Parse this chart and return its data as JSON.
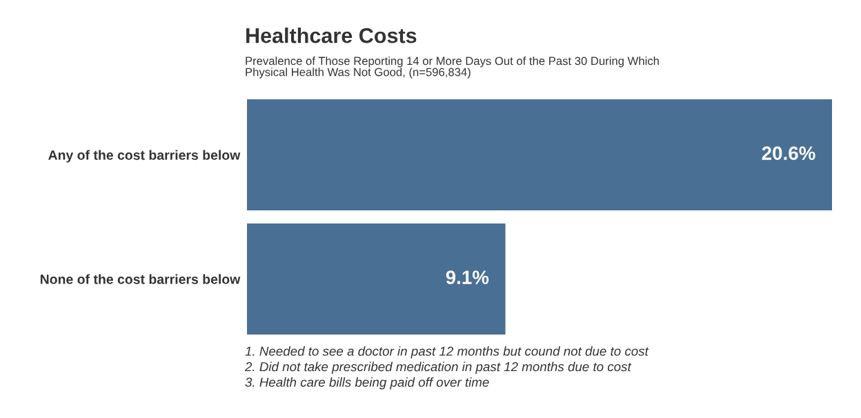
{
  "chart_data": {
    "type": "bar",
    "orientation": "horizontal",
    "title": "Healthcare Costs",
    "subtitle": "Prevalence of Those Reporting 14 or More Days Out of the Past 30 During Which\nPhysical Health Was Not Good, (n=596,834)",
    "categories": [
      "Any of the cost barriers below",
      "None of the cost barriers below"
    ],
    "values": [
      20.6,
      9.1
    ],
    "color": "#4a6f94",
    "value_labels": [
      "20.6%",
      "9.1%"
    ],
    "annotations": [
      "1. Needed to see a doctor in past 12 months but cound not due to cost",
      "2. Did not take prescribed medication in past 12 months due to cost",
      "3. Health care bills being paid off over time"
    ]
  }
}
